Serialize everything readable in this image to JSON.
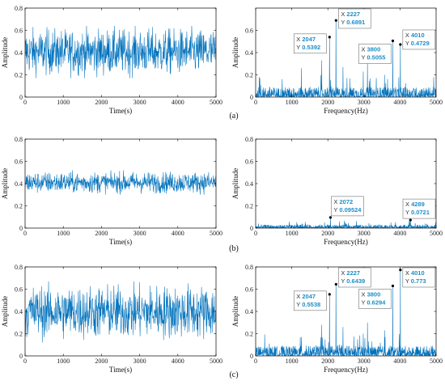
{
  "colors": {
    "signal": "#0072BD",
    "datatip_value": "#1c8fc9",
    "axis": "#000000"
  },
  "panel_labels": [
    "(a)",
    "(b)",
    "(c)"
  ],
  "chart_data": [
    {
      "type": "line",
      "subject": "time-signal-a",
      "xlabel": "Time(s)",
      "ylabel": "Amplitude",
      "xlim": [
        0,
        5000
      ],
      "ylim": [
        0,
        0.8
      ],
      "xticks": [
        0,
        1000,
        2000,
        3000,
        4000,
        5000
      ],
      "yticks": [
        0,
        0.2,
        0.4,
        0.6,
        0.8
      ],
      "xtick_labels": [
        "0",
        "1000",
        "2000",
        "3000",
        "4000",
        "5000"
      ],
      "ytick_labels": [
        "0",
        "0.2",
        "0.4",
        "0.6",
        "0.8"
      ],
      "signal": {
        "mean": 0.4,
        "min": 0.17,
        "max": 0.64
      }
    },
    {
      "type": "line",
      "subject": "spectrum-a",
      "xlabel": "Frequency(Hz)",
      "ylabel": "Amplitude",
      "xlim": [
        0,
        5000
      ],
      "ylim": [
        0,
        0.8
      ],
      "xticks": [
        0,
        1000,
        2000,
        3000,
        4000,
        5000
      ],
      "yticks": [
        0,
        0.2,
        0.4,
        0.6
      ],
      "xtick_labels": [
        "0",
        "1000",
        "2000",
        "3000",
        "4000",
        "5000"
      ],
      "ytick_labels": [
        "0",
        "0.2",
        "0.4",
        "0.6"
      ],
      "peaks": [
        {
          "x": 2047,
          "y": 0.5392,
          "x_text": "2047",
          "y_text": "0.5392"
        },
        {
          "x": 2227,
          "y": 0.6891,
          "x_text": "2227",
          "y_text": "0.6891"
        },
        {
          "x": 3800,
          "y": 0.5055,
          "x_text": "3800",
          "y_text": "0.5055"
        },
        {
          "x": 4010,
          "y": 0.4729,
          "x_text": "4010",
          "y_text": "0.4729"
        }
      ],
      "secondary_spikes": [
        [
          1270,
          0.26
        ],
        [
          1830,
          0.33
        ],
        [
          2420,
          0.27
        ],
        [
          2980,
          0.23
        ],
        [
          3100,
          0.3
        ],
        [
          3570,
          0.2
        ]
      ]
    },
    {
      "type": "line",
      "subject": "time-signal-b",
      "xlabel": "Time(s)",
      "ylabel": "Amplitude",
      "xlim": [
        0,
        5000
      ],
      "ylim": [
        0,
        0.8
      ],
      "xticks": [
        0,
        1000,
        2000,
        3000,
        4000,
        5000
      ],
      "yticks": [
        0,
        0.2,
        0.4,
        0.6,
        0.8
      ],
      "xtick_labels": [
        "0",
        "1000",
        "2000",
        "3000",
        "4000",
        "5000"
      ],
      "ytick_labels": [
        "0",
        "0.2",
        "0.4",
        "0.6",
        "0.8"
      ],
      "signal": {
        "mean": 0.4,
        "min": 0.3,
        "max": 0.52
      }
    },
    {
      "type": "line",
      "subject": "spectrum-b",
      "xlabel": "Frequency(Hz)",
      "ylabel": "Amplitude",
      "xlim": [
        0,
        5000
      ],
      "ylim": [
        0,
        0.8
      ],
      "xticks": [
        0,
        1000,
        2000,
        3000,
        4000,
        5000
      ],
      "yticks": [
        0,
        0.2,
        0.4,
        0.6,
        0.8
      ],
      "xtick_labels": [
        "0",
        "1000",
        "2000",
        "3000",
        "4000",
        "5000"
      ],
      "ytick_labels": [
        "0",
        "0.2",
        "0.4",
        "0.6",
        "0.8"
      ],
      "peaks": [
        {
          "x": 2072,
          "y": 0.09524,
          "x_text": "2072",
          "y_text": "0.09524"
        },
        {
          "x": 4289,
          "y": 0.0721,
          "x_text": "4289",
          "y_text": "0.0721"
        }
      ],
      "secondary_spikes": [
        [
          1280,
          0.04
        ],
        [
          1910,
          0.05
        ],
        [
          2500,
          0.04
        ],
        [
          3750,
          0.05
        ]
      ]
    },
    {
      "type": "line",
      "subject": "time-signal-c",
      "xlabel": "Time(s)",
      "ylabel": "Amplitude",
      "xlim": [
        0,
        5000
      ],
      "ylim": [
        0,
        0.8
      ],
      "xticks": [
        0,
        1000,
        2000,
        3000,
        4000,
        5000
      ],
      "yticks": [
        0,
        0.2,
        0.4,
        0.6,
        0.8
      ],
      "xtick_labels": [
        "0",
        "1000",
        "2000",
        "3000",
        "4000",
        "5000"
      ],
      "ytick_labels": [
        "0",
        "0.2",
        "0.4",
        "0.6",
        "0.8"
      ],
      "signal": {
        "mean": 0.4,
        "min": 0.12,
        "max": 0.67
      }
    },
    {
      "type": "line",
      "subject": "spectrum-c",
      "xlabel": "Frequency(Hz)",
      "ylabel": "Amplitude",
      "xlim": [
        0,
        5000
      ],
      "ylim": [
        0,
        0.8
      ],
      "xticks": [
        0,
        1000,
        2000,
        3000,
        4000,
        5000
      ],
      "yticks": [
        0,
        0.2,
        0.4,
        0.6,
        0.8
      ],
      "xtick_labels": [
        "0",
        "1000",
        "2000",
        "3000",
        "4000",
        "5000"
      ],
      "ytick_labels": [
        "0",
        "0.2",
        "0.4",
        "0.6",
        "0.8"
      ],
      "peaks": [
        {
          "x": 2047,
          "y": 0.5538,
          "x_text": "2047",
          "y_text": "0.5538"
        },
        {
          "x": 2227,
          "y": 0.6439,
          "x_text": "2227",
          "y_text": "0.6439"
        },
        {
          "x": 3800,
          "y": 0.6294,
          "x_text": "3800",
          "y_text": "0.6294"
        },
        {
          "x": 4010,
          "y": 0.773,
          "x_text": "4010",
          "y_text": "0.773"
        }
      ],
      "secondary_spikes": [
        [
          1270,
          0.17
        ],
        [
          1830,
          0.28
        ],
        [
          2420,
          0.26
        ],
        [
          2980,
          0.2
        ],
        [
          3100,
          0.3
        ],
        [
          3570,
          0.23
        ]
      ]
    }
  ]
}
